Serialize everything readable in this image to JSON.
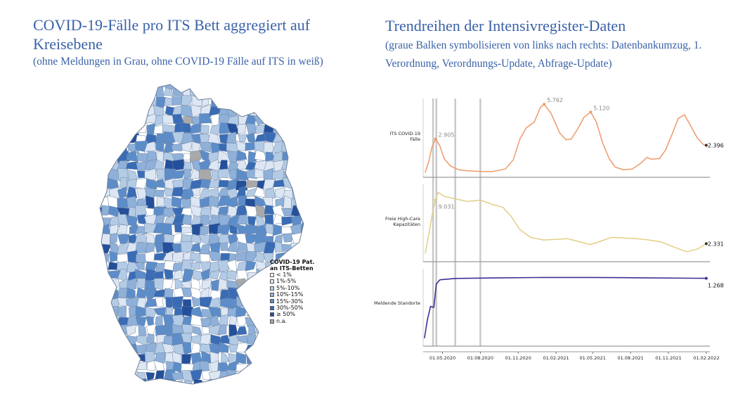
{
  "left_panel": {
    "title_main": "COVID-19-Fälle pro ITS Bett aggregiert auf Kreisebene",
    "title_note": "(ohne Meldungen in Grau, ohne COVID-19 Fälle auf ITS in weiß)",
    "legend": {
      "title_line1": "COVID-19 Pat.",
      "title_line2": "an ITS-Betten",
      "items": [
        {
          "label": "< 1%",
          "color": "#ffffff"
        },
        {
          "label": "1%-5%",
          "color": "#dde6f3"
        },
        {
          "label": "5%-10%",
          "color": "#b4cbe6"
        },
        {
          "label": "10%-15%",
          "color": "#8eb0d9"
        },
        {
          "label": "15%-30%",
          "color": "#5d8dc8"
        },
        {
          "label": "30%-50%",
          "color": "#3a6cb5"
        },
        {
          "label": "≥ 50%",
          "color": "#244f9a"
        },
        {
          "label": "n.a.",
          "color": "#a9a9a9"
        }
      ]
    }
  },
  "right_panel": {
    "title_main": "Trendreihen der Intensivregister-Daten",
    "title_note": "(graue Balken symbolisieren von links nach rechts: Datenbankumzug, 1. Verordnung, Verordnungs-Update, Abfrage-Update)"
  },
  "chart_data": {
    "type": "line",
    "x_ticks": [
      "01.05.2020",
      "01.08.2020",
      "01.11.2020",
      "01.02.2021",
      "01.05.2021",
      "01.08.2021",
      "01.11.2021",
      "01.02.2022"
    ],
    "event_lines": [
      "2020-04-08",
      "2020-04-16",
      "2020-06-01",
      "2020-08-01"
    ],
    "series": [
      {
        "name": "ITS COVID-19 Fälle",
        "color": "#ee9a6a",
        "ylim": [
          0,
          6000
        ],
        "annotations": [
          {
            "date": "2020-04-14",
            "value": 2905,
            "label": "2.905"
          },
          {
            "date": "2021-01-03",
            "value": 5762,
            "label": "5.762"
          },
          {
            "date": "2021-04-26",
            "value": 5120,
            "label": "5.120"
          },
          {
            "date": "2022-02-01",
            "value": 2396,
            "label": "2.396"
          }
        ],
        "points": [
          [
            "2020-03-20",
            150
          ],
          [
            "2020-03-28",
            1000
          ],
          [
            "2020-04-05",
            2200
          ],
          [
            "2020-04-14",
            2905
          ],
          [
            "2020-04-24",
            2400
          ],
          [
            "2020-05-05",
            1300
          ],
          [
            "2020-05-20",
            700
          ],
          [
            "2020-06-10",
            380
          ],
          [
            "2020-07-01",
            300
          ],
          [
            "2020-08-01",
            250
          ],
          [
            "2020-09-01",
            250
          ],
          [
            "2020-10-01",
            450
          ],
          [
            "2020-10-20",
            1200
          ],
          [
            "2020-11-05",
            2900
          ],
          [
            "2020-11-20",
            3800
          ],
          [
            "2020-12-10",
            4300
          ],
          [
            "2020-12-25",
            5500
          ],
          [
            "2021-01-03",
            5762
          ],
          [
            "2021-01-20",
            5000
          ],
          [
            "2021-02-10",
            3400
          ],
          [
            "2021-02-25",
            2850
          ],
          [
            "2021-03-10",
            2900
          ],
          [
            "2021-03-25",
            3700
          ],
          [
            "2021-04-10",
            4700
          ],
          [
            "2021-04-26",
            5120
          ],
          [
            "2021-05-10",
            4300
          ],
          [
            "2021-05-25",
            2600
          ],
          [
            "2021-06-10",
            1300
          ],
          [
            "2021-06-25",
            600
          ],
          [
            "2021-07-15",
            380
          ],
          [
            "2021-08-05",
            450
          ],
          [
            "2021-08-25",
            900
          ],
          [
            "2021-09-10",
            1400
          ],
          [
            "2021-09-20",
            1250
          ],
          [
            "2021-10-10",
            1300
          ],
          [
            "2021-10-25",
            2000
          ],
          [
            "2021-11-10",
            3300
          ],
          [
            "2021-11-25",
            4600
          ],
          [
            "2021-12-10",
            4900
          ],
          [
            "2021-12-25",
            4000
          ],
          [
            "2022-01-10",
            3000
          ],
          [
            "2022-01-25",
            2450
          ],
          [
            "2022-02-01",
            2396
          ]
        ]
      },
      {
        "name": "Freie High-Care Kapazitäten",
        "color": "#e3ce88",
        "ylim": [
          0,
          11000
        ],
        "annotations": [
          {
            "date": "2020-04-14",
            "value": 9031,
            "label": "9.031"
          },
          {
            "date": "2022-02-01",
            "value": 2331,
            "label": "2.331"
          }
        ],
        "points": [
          [
            "2020-03-20",
            800
          ],
          [
            "2020-03-28",
            3500
          ],
          [
            "2020-04-05",
            6500
          ],
          [
            "2020-04-10",
            8000
          ],
          [
            "2020-04-14",
            9031
          ],
          [
            "2020-04-20",
            10200
          ],
          [
            "2020-05-05",
            9600
          ],
          [
            "2020-06-01",
            9200
          ],
          [
            "2020-07-01",
            8800
          ],
          [
            "2020-08-01",
            9000
          ],
          [
            "2020-09-01",
            8300
          ],
          [
            "2020-09-25",
            7900
          ],
          [
            "2020-10-15",
            6500
          ],
          [
            "2020-11-05",
            4500
          ],
          [
            "2020-12-01",
            3300
          ],
          [
            "2021-01-01",
            2900
          ],
          [
            "2021-02-01",
            3000
          ],
          [
            "2021-03-01",
            3100
          ],
          [
            "2021-04-01",
            2600
          ],
          [
            "2021-04-25",
            2200
          ],
          [
            "2021-05-20",
            2700
          ],
          [
            "2021-06-15",
            3300
          ],
          [
            "2021-07-15",
            3200
          ],
          [
            "2021-08-15",
            3100
          ],
          [
            "2021-09-15",
            2900
          ],
          [
            "2021-10-15",
            2600
          ],
          [
            "2021-11-15",
            1800
          ],
          [
            "2021-12-15",
            1100
          ],
          [
            "2022-01-10",
            1500
          ],
          [
            "2022-02-01",
            2331
          ]
        ]
      },
      {
        "name": "Meldende Standorte",
        "color": "#3f2f93",
        "ylim": [
          0,
          1400
        ],
        "annotations": [
          {
            "date": "2022-02-01",
            "value": 1268,
            "label": "1.268"
          }
        ],
        "points": [
          [
            "2020-03-18",
            100
          ],
          [
            "2020-03-25",
            450
          ],
          [
            "2020-04-02",
            720
          ],
          [
            "2020-04-10",
            700
          ],
          [
            "2020-04-16",
            1160
          ],
          [
            "2020-04-25",
            1240
          ],
          [
            "2020-06-01",
            1265
          ],
          [
            "2020-09-01",
            1275
          ],
          [
            "2021-01-01",
            1285
          ],
          [
            "2021-05-01",
            1285
          ],
          [
            "2021-09-01",
            1278
          ],
          [
            "2022-01-01",
            1270
          ],
          [
            "2022-02-01",
            1268
          ]
        ]
      }
    ]
  }
}
